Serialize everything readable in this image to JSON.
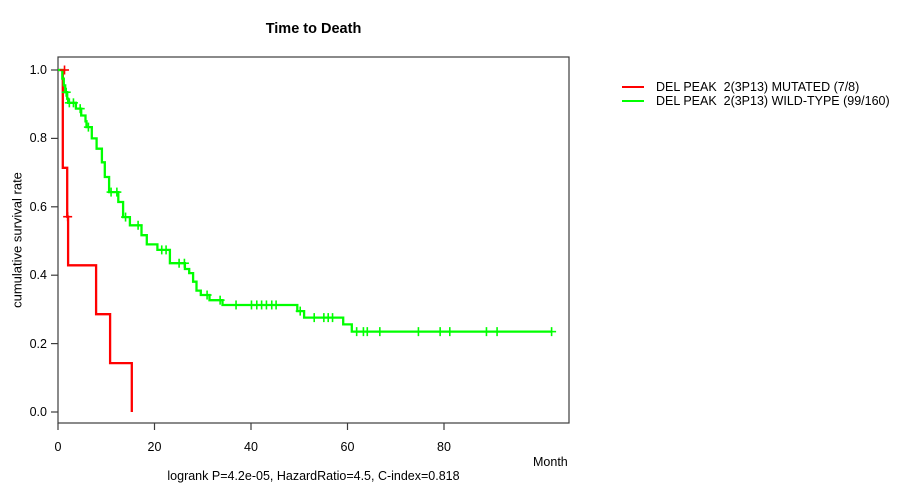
{
  "figure": {
    "background": "#ffffff",
    "frame_color": "#3c3c3c",
    "text_color": "#000000"
  },
  "chart_data": {
    "type": "line",
    "subtype": "kaplan-meier-step-curve",
    "title": "Time to Death",
    "xlabel": "Month",
    "ylabel": "cumulative survival rate",
    "annotation": "logrank P=4.2e-05, HazardRatio=4.5, C-index=0.818",
    "xlim": [
      0,
      105.9
    ],
    "ylim": [
      0,
      1
    ],
    "grid": false,
    "legend_position": "outside-top-right",
    "xticks": {
      "values": [
        0,
        20,
        40,
        60,
        80
      ],
      "labels": [
        "0",
        "20",
        "40",
        "60",
        "80"
      ]
    },
    "yticks": {
      "values": [
        0,
        0.2,
        0.4,
        0.6,
        0.8,
        1
      ],
      "labels": [
        "0.0",
        "0.2",
        "0.4",
        "0.6",
        "0.8",
        "1.0"
      ]
    },
    "series": [
      {
        "name": "DEL PEAK  2(3P13) MUTATED (7/8)",
        "color": "#ff0000",
        "steps": [
          [
            0,
            1.0
          ],
          [
            1.0,
            1.0
          ],
          [
            1.0,
            0.714
          ],
          [
            1.9,
            0.714
          ],
          [
            1.9,
            0.571
          ],
          [
            2.1,
            0.571
          ],
          [
            2.1,
            0.429
          ],
          [
            7.9,
            0.429
          ],
          [
            7.9,
            0.286
          ],
          [
            10.8,
            0.286
          ],
          [
            10.8,
            0.143
          ],
          [
            15.3,
            0.143
          ],
          [
            15.3,
            0.0
          ]
        ],
        "censor_marks": [
          [
            1.35,
            1.0
          ],
          [
            2.0,
            0.571
          ]
        ]
      },
      {
        "name": "DEL PEAK  2(3P13) WILD-TYPE (99/160)",
        "color": "#00ff00",
        "steps": [
          [
            0,
            1.0
          ],
          [
            0.9,
            1.0
          ],
          [
            0.9,
            0.975
          ],
          [
            1.2,
            0.975
          ],
          [
            1.2,
            0.955
          ],
          [
            1.5,
            0.955
          ],
          [
            1.5,
            0.935
          ],
          [
            1.9,
            0.935
          ],
          [
            1.9,
            0.916
          ],
          [
            2.1,
            0.916
          ],
          [
            2.1,
            0.904
          ],
          [
            3.7,
            0.904
          ],
          [
            3.7,
            0.887
          ],
          [
            4.8,
            0.887
          ],
          [
            4.8,
            0.867
          ],
          [
            5.7,
            0.867
          ],
          [
            5.7,
            0.85
          ],
          [
            5.9,
            0.85
          ],
          [
            5.9,
            0.833
          ],
          [
            7.0,
            0.833
          ],
          [
            7.0,
            0.8
          ],
          [
            8.0,
            0.8
          ],
          [
            8.0,
            0.77
          ],
          [
            9.1,
            0.77
          ],
          [
            9.1,
            0.73
          ],
          [
            9.7,
            0.73
          ],
          [
            9.7,
            0.687
          ],
          [
            10.6,
            0.687
          ],
          [
            10.6,
            0.643
          ],
          [
            12.5,
            0.643
          ],
          [
            12.5,
            0.614
          ],
          [
            13.5,
            0.614
          ],
          [
            13.5,
            0.57
          ],
          [
            14.9,
            0.57
          ],
          [
            14.9,
            0.546
          ],
          [
            17.3,
            0.546
          ],
          [
            17.3,
            0.517
          ],
          [
            18.4,
            0.517
          ],
          [
            18.4,
            0.49
          ],
          [
            20.6,
            0.49
          ],
          [
            20.6,
            0.474
          ],
          [
            23.2,
            0.474
          ],
          [
            23.2,
            0.435
          ],
          [
            26.3,
            0.435
          ],
          [
            26.3,
            0.418
          ],
          [
            27.2,
            0.418
          ],
          [
            27.2,
            0.406
          ],
          [
            28.0,
            0.406
          ],
          [
            28.0,
            0.381
          ],
          [
            28.7,
            0.381
          ],
          [
            28.7,
            0.355
          ],
          [
            29.6,
            0.355
          ],
          [
            29.6,
            0.342
          ],
          [
            31.4,
            0.342
          ],
          [
            31.4,
            0.327
          ],
          [
            34.1,
            0.327
          ],
          [
            34.1,
            0.313
          ],
          [
            49.6,
            0.313
          ],
          [
            49.6,
            0.295
          ],
          [
            51.0,
            0.295
          ],
          [
            51.0,
            0.276
          ],
          [
            59.1,
            0.276
          ],
          [
            59.1,
            0.256
          ],
          [
            60.9,
            0.256
          ],
          [
            60.9,
            0.235
          ],
          [
            102.3,
            0.235
          ]
        ],
        "censor_marks": [
          [
            1.7,
            0.935
          ],
          [
            2.35,
            0.904
          ],
          [
            3.2,
            0.904
          ],
          [
            4.6,
            0.887
          ],
          [
            6.3,
            0.833
          ],
          [
            11.0,
            0.643
          ],
          [
            12.2,
            0.643
          ],
          [
            14.0,
            0.57
          ],
          [
            16.6,
            0.546
          ],
          [
            21.5,
            0.474
          ],
          [
            22.4,
            0.474
          ],
          [
            25.1,
            0.435
          ],
          [
            26.2,
            0.435
          ],
          [
            30.9,
            0.342
          ],
          [
            33.6,
            0.327
          ],
          [
            36.9,
            0.313
          ],
          [
            40.1,
            0.313
          ],
          [
            41.2,
            0.313
          ],
          [
            42.2,
            0.313
          ],
          [
            43.2,
            0.313
          ],
          [
            44.3,
            0.313
          ],
          [
            45.2,
            0.313
          ],
          [
            50.2,
            0.295
          ],
          [
            53.1,
            0.276
          ],
          [
            55.1,
            0.276
          ],
          [
            56.0,
            0.276
          ],
          [
            56.9,
            0.276
          ],
          [
            61.9,
            0.235
          ],
          [
            63.3,
            0.235
          ],
          [
            64.1,
            0.235
          ],
          [
            66.7,
            0.235
          ],
          [
            74.7,
            0.235
          ],
          [
            79.2,
            0.235
          ],
          [
            81.2,
            0.235
          ],
          [
            88.8,
            0.235
          ],
          [
            91.0,
            0.235
          ],
          [
            102.3,
            0.235
          ]
        ]
      }
    ]
  }
}
